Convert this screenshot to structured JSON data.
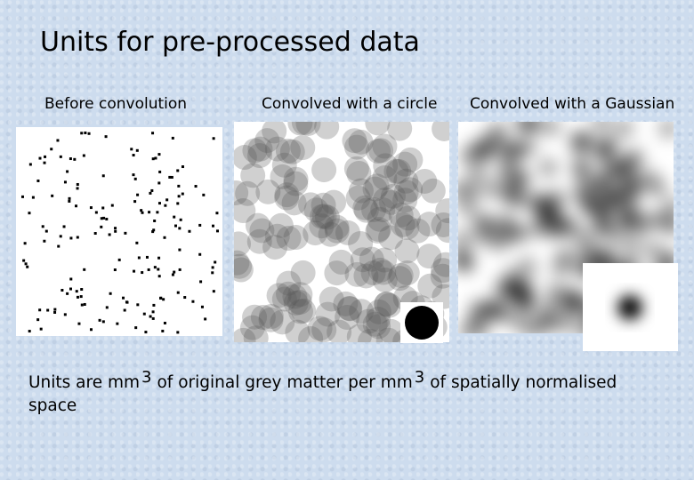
{
  "title": "Units for pre-processed data",
  "panels": [
    {
      "label": "Before convolution"
    },
    {
      "label": "Convolved with a circle"
    },
    {
      "label": "Convolved with a Gaussian"
    }
  ],
  "caption": {
    "parts": [
      "Units are mm",
      "3",
      "of original grey matter per mm",
      "3",
      "of spatially normalised space"
    ]
  }
}
